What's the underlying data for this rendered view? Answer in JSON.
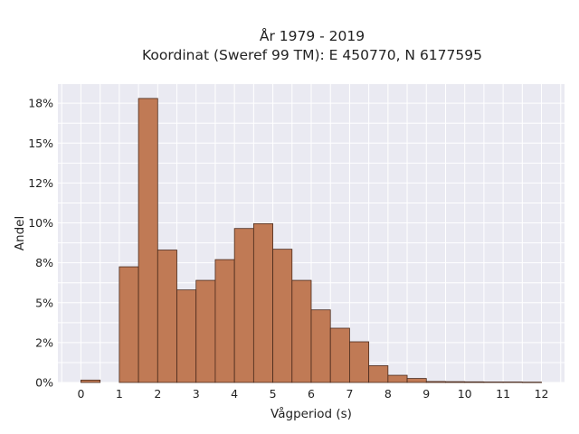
{
  "chart_data": {
    "type": "bar",
    "title_line1": "År 1979 - 2019",
    "title_line2": "Koordinat (Sweref 99 TM): E 450770, N 6177595",
    "xlabel": "Vågperiod (s)",
    "ylabel": "Andel",
    "xlim": [
      -0.6,
      12.6
    ],
    "ylim": [
      0,
      0.187
    ],
    "x_ticks": [
      0,
      1,
      2,
      3,
      4,
      5,
      6,
      7,
      8,
      9,
      10,
      11,
      12
    ],
    "x_tick_labels": [
      "0",
      "1",
      "2",
      "3",
      "4",
      "5",
      "6",
      "7",
      "8",
      "9",
      "10",
      "11",
      "12"
    ],
    "y_ticks": [
      0,
      0.025,
      0.05,
      0.075,
      0.1,
      0.125,
      0.15,
      0.175
    ],
    "y_tick_labels": [
      "0%",
      "2%",
      "5%",
      "8%",
      "10%",
      "12%",
      "15%",
      "18%"
    ],
    "bin_width": 0.5,
    "bin_starts": [
      0,
      1,
      1.5,
      2,
      2.5,
      3,
      3.5,
      4,
      4.5,
      5,
      5.5,
      6,
      6.5,
      7,
      7.5,
      8,
      8.5,
      9,
      9.5,
      10,
      10.5,
      11,
      11.5
    ],
    "values": [
      0.0015,
      0.0725,
      0.178,
      0.083,
      0.058,
      0.064,
      0.077,
      0.0965,
      0.0995,
      0.0835,
      0.064,
      0.0455,
      0.034,
      0.0255,
      0.0105,
      0.0045,
      0.0025,
      0.0006,
      0.0005,
      0.0004,
      0.0003,
      0.0003,
      0.0002
    ],
    "grid": true,
    "colors": {
      "plot_background": "#eaeaf2",
      "grid": "#ffffff",
      "bar_fill": "#c07a55",
      "bar_edge": "#4a2a1c"
    }
  }
}
